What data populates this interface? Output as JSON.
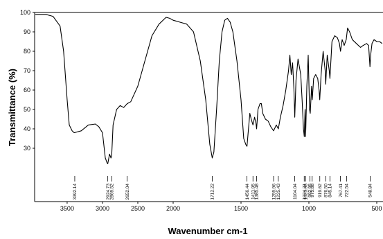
{
  "chart_data": {
    "type": "line",
    "xlabel": "Wavenumber cm-1",
    "ylabel": "Transmittance (%)",
    "xlim": [
      3960,
      454
    ],
    "x_scale_break": 2000,
    "xticks": [
      3500,
      3000,
      2500,
      2000,
      1500,
      1000,
      500
    ],
    "ylim": [
      2.5,
      100
    ],
    "yticks": [
      30,
      40,
      50,
      60,
      70,
      80,
      90,
      100
    ],
    "color": "#000000",
    "x": [
      3950,
      3800,
      3700,
      3600,
      3550,
      3500,
      3470,
      3430,
      3400,
      3300,
      3200,
      3100,
      3050,
      3000,
      2960,
      2935,
      2925,
      2900,
      2880,
      2870,
      2850,
      2800,
      2750,
      2700,
      2650,
      2600,
      2500,
      2400,
      2300,
      2200,
      2100,
      2050,
      2000,
      1950,
      1900,
      1850,
      1800,
      1760,
      1730,
      1712,
      1700,
      1680,
      1660,
      1640,
      1620,
      1600,
      1580,
      1560,
      1530,
      1500,
      1480,
      1465,
      1456,
      1445,
      1435,
      1425,
      1412,
      1400,
      1390,
      1385,
      1375,
      1360,
      1350,
      1340,
      1320,
      1300,
      1280,
      1260,
      1240,
      1225,
      1210,
      1190,
      1170,
      1150,
      1140,
      1130,
      1120,
      1110,
      1104,
      1095,
      1080,
      1060,
      1050,
      1040,
      1034,
      1028,
      1024,
      1015,
      1005,
      995,
      990,
      980,
      975,
      965,
      950,
      935,
      925,
      920,
      910,
      895,
      880,
      876,
      865,
      850,
      845,
      830,
      810,
      790,
      775,
      767,
      755,
      740,
      725,
      715,
      700,
      680,
      650,
      620,
      600,
      575,
      560,
      550,
      545,
      535,
      520,
      500,
      480,
      460
    ],
    "values": [
      99,
      99,
      98,
      93,
      80,
      55,
      42,
      39,
      38,
      39,
      42,
      42.5,
      41,
      38,
      25,
      22.5,
      22,
      27,
      25,
      26,
      42,
      50,
      52,
      51,
      53,
      54,
      62,
      75,
      88,
      94,
      97.5,
      97,
      96,
      95,
      94,
      90,
      75,
      55,
      32,
      25,
      28,
      50,
      75,
      90,
      96,
      97,
      95,
      90,
      75,
      55,
      35,
      32,
      31,
      40,
      48,
      45,
      42,
      46,
      43,
      40,
      50,
      53,
      53,
      48,
      45,
      44,
      41,
      39,
      42,
      40,
      46,
      52,
      60,
      70,
      78,
      68,
      74,
      60,
      46,
      65,
      76,
      68,
      55,
      40,
      36,
      50,
      36,
      62,
      78,
      50,
      48,
      62,
      55,
      66,
      68,
      66,
      60,
      55,
      68,
      80,
      70,
      63,
      78,
      70,
      66,
      85,
      88,
      87,
      84,
      80,
      86,
      83,
      86,
      92,
      90,
      86,
      84,
      82,
      83,
      84,
      83,
      72,
      78,
      84,
      86,
      85,
      85,
      84
    ],
    "peaks": [
      3392.14,
      2924.73,
      2869.52,
      2652.04,
      1712.22,
      1456.44,
      1411.95,
      1385.48,
      1259.96,
      1225.43,
      1104.04,
      1034.31,
      1023.95,
      992.95,
      975.88,
      919.62,
      {
        "value": 876.5,
        "label": "876.50"
      },
      845.14,
      767.41,
      722.54,
      548.84
    ]
  }
}
